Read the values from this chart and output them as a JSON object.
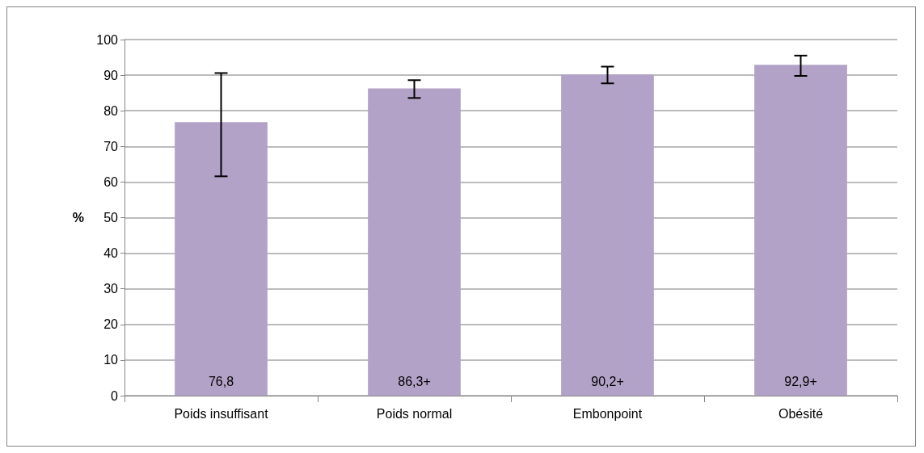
{
  "chart_data": {
    "type": "bar",
    "ylabel": "%",
    "categories": [
      "Poids insuffisant",
      "Poids normal",
      "Embonpoint",
      "Obésité"
    ],
    "values": [
      76.8,
      86.3,
      90.2,
      92.9
    ],
    "value_labels": [
      "76,8",
      "86,3+",
      "90,2+",
      "92,9+"
    ],
    "errors": [
      [
        61.6,
        90.6
      ],
      [
        83.6,
        88.6
      ],
      [
        87.7,
        92.4
      ],
      [
        89.8,
        95.5
      ]
    ],
    "color": "#b3a2c7",
    "ylim": [
      0,
      100
    ],
    "yticks": [
      0,
      10,
      20,
      30,
      40,
      50,
      60,
      70,
      80,
      90,
      100
    ],
    "grid": "y"
  }
}
